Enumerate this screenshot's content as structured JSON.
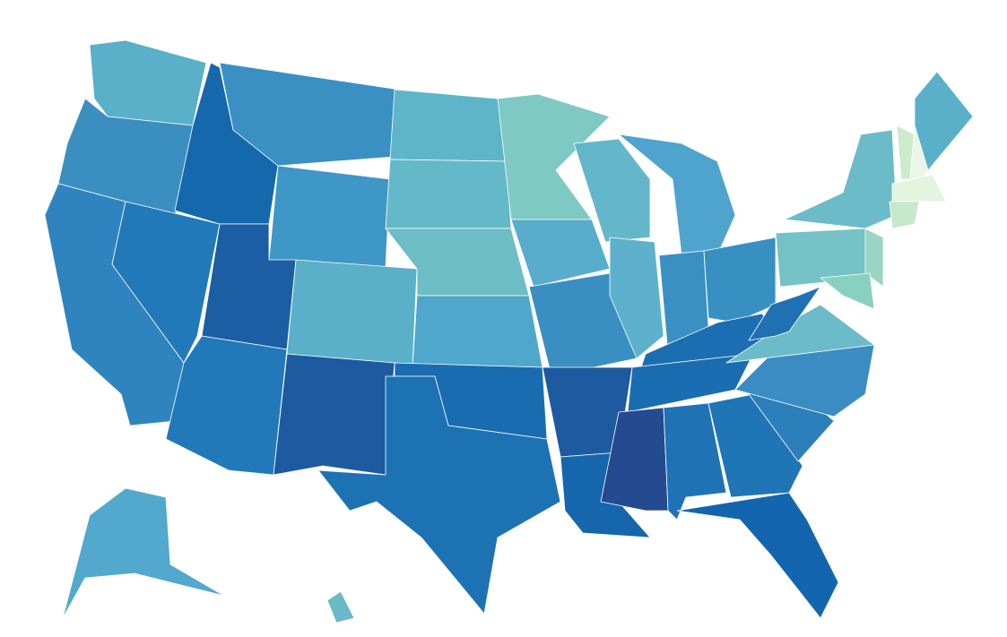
{
  "map": {
    "regions": [
      {
        "color": "#5aafc9"
      },
      {
        "color": "#3b8fc0"
      },
      {
        "color": "#2f84bf"
      },
      {
        "color": "#2279b9"
      },
      {
        "color": "#1668ad"
      },
      {
        "color": "#3a90c2"
      },
      {
        "color": "#3e97c6"
      },
      {
        "color": "#1c5ea3"
      },
      {
        "color": "#2279b9"
      },
      {
        "color": "#5ab0c8"
      },
      {
        "color": "#1e5a9f"
      },
      {
        "color": "#5eb5ca"
      },
      {
        "color": "#64b9c8"
      },
      {
        "color": "#6cbdc4"
      },
      {
        "color": "#4fa7cc"
      },
      {
        "color": "#1a6cb0"
      },
      {
        "color": "#1d72b4"
      },
      {
        "color": "#7ec9c3"
      },
      {
        "color": "#58adcd"
      },
      {
        "color": "#3a8fc2"
      },
      {
        "color": "#1e5a9f"
      },
      {
        "color": "#1666ae"
      },
      {
        "color": "#64b7cb"
      },
      {
        "color": "#5eb1cc"
      },
      {
        "color": "#4fa4ce"
      },
      {
        "color": "#3a90c2"
      },
      {
        "color": "#3890c2"
      },
      {
        "color": "#1c6eb2"
      },
      {
        "color": "#1a6db1"
      },
      {
        "color": "#244a8f"
      },
      {
        "color": "#1f73b5"
      },
      {
        "color": "#2075b6"
      },
      {
        "color": "#1366ad"
      },
      {
        "color": "#2c7fbb"
      },
      {
        "color": "#3a8cc3"
      },
      {
        "color": "#6cbbc8"
      },
      {
        "color": "#2070b4"
      },
      {
        "color": "#75c2c6"
      },
      {
        "color": "#6cbbc8"
      },
      {
        "color": "#5ab0c9"
      },
      {
        "color": "#ccebcd"
      },
      {
        "color": "#eaf6e7"
      },
      {
        "color": "#e3f4df"
      },
      {
        "color": "#c6e8cb"
      },
      {
        "color": "#9bd4c2"
      },
      {
        "color": "#8ad0c0"
      },
      {
        "color": "#52a8cd"
      },
      {
        "color": "#6ab9c8"
      }
    ]
  }
}
